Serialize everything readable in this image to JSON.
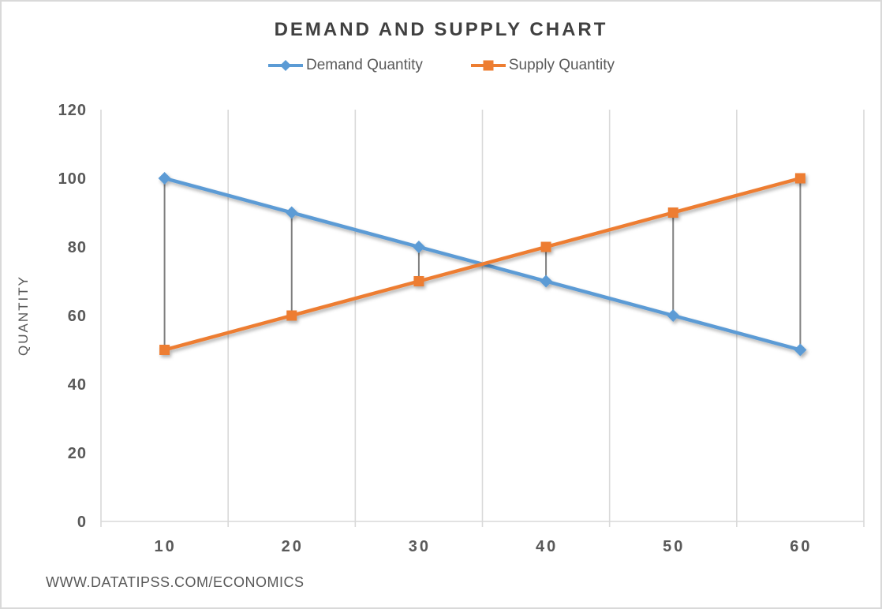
{
  "page": {
    "title": "DEMAND AND SUPPLY CHART",
    "footer": "WWW.DATATIPSS.COM/ECONOMICS"
  },
  "colors": {
    "demand": "#5B9BD5",
    "supply": "#ED7D31",
    "gridline": "#D9D9D9",
    "axis_line": "#D9D9D9",
    "high_low_line": "#7F7F7F",
    "title_text": "#404040",
    "label_text": "#595959",
    "frame_border": "#D9D9D9"
  },
  "chart_data": {
    "type": "line",
    "title": "DEMAND AND SUPPLY CHART",
    "categories": [
      "10",
      "20",
      "30",
      "40",
      "50",
      "60"
    ],
    "series": [
      {
        "name": "Demand Quantity",
        "values": [
          100,
          90,
          80,
          70,
          60,
          50
        ],
        "color": "#5B9BD5",
        "marker": "diamond"
      },
      {
        "name": "Supply Quantity",
        "values": [
          50,
          60,
          70,
          80,
          90,
          100
        ],
        "color": "#ED7D31",
        "marker": "square"
      }
    ],
    "xlabel": "",
    "ylabel": "QUANTITY",
    "ylim": [
      0,
      120
    ],
    "yticks": [
      0,
      20,
      40,
      60,
      80,
      100,
      120
    ],
    "grid": "vertical gridlines at category boundaries only",
    "high_low_lines": true,
    "legend_position": "top-center"
  }
}
